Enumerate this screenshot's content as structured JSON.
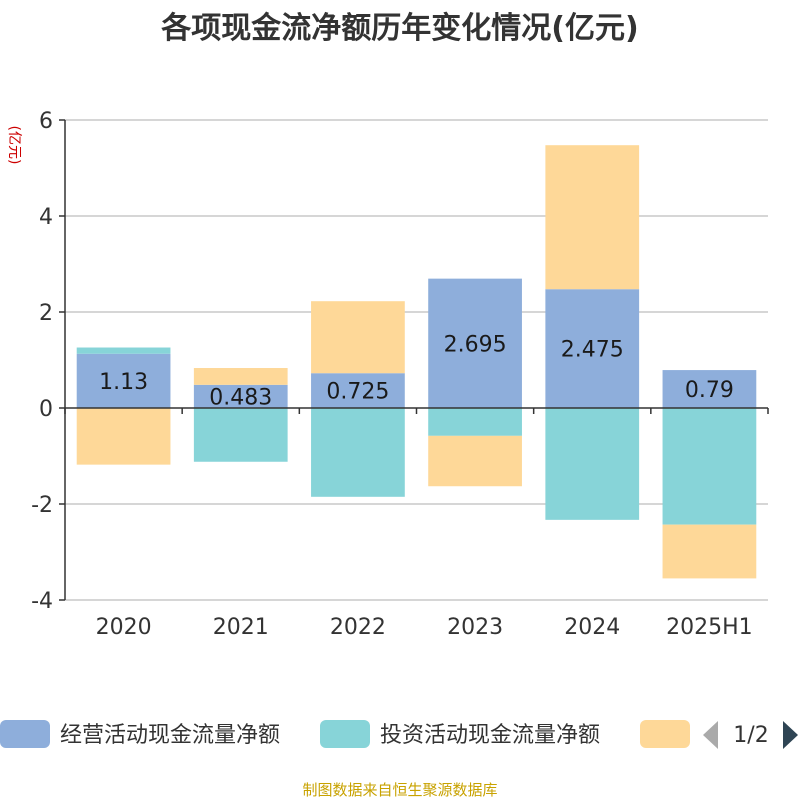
{
  "chart_data": {
    "type": "bar",
    "stacked": true,
    "title": "各项现金流净额历年变化情况(亿元)",
    "unit_label": "(亿元)",
    "categories": [
      "2020",
      "2021",
      "2022",
      "2023",
      "2024",
      "2025H1"
    ],
    "ylim": [
      -4,
      6
    ],
    "yticks": [
      -4,
      -2,
      0,
      2,
      4,
      6
    ],
    "grid": true,
    "legend_position": "bottom",
    "series": [
      {
        "name": "经营活动现金流量净额",
        "color": "#8eaedb",
        "values": [
          1.13,
          0.483,
          0.725,
          2.695,
          2.475,
          0.79
        ],
        "labels": [
          "1.13",
          "0.483",
          "0.725",
          "2.695",
          "2.475",
          "0.79"
        ]
      },
      {
        "name": "投资活动现金流量净额",
        "color": "#87d4d8",
        "values": [
          0.13,
          -1.12,
          -1.85,
          -0.58,
          -2.33,
          -2.43
        ]
      },
      {
        "name": "",
        "color": "#fed898",
        "values": [
          -1.18,
          0.35,
          1.5,
          -1.05,
          3.0,
          -1.12
        ]
      }
    ]
  },
  "legend": {
    "page": "1/2"
  },
  "source": "制图数据来自恒生聚源数据库"
}
